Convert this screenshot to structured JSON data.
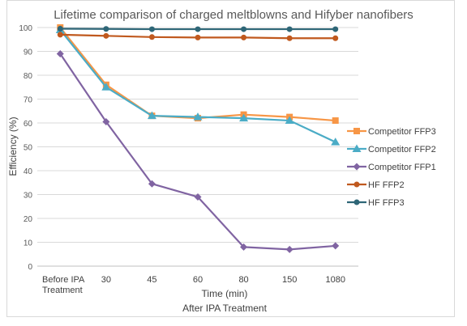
{
  "chart_data": {
    "type": "line",
    "title": "Lifetime comparison of charged meltblowns and Hifyber nanofibers",
    "ylabel": "Efficiency (%)",
    "xlabel": "Time (min)",
    "xlabel2": "After IPA Treatment",
    "categories": [
      "Before IPA Treatment",
      "30",
      "45",
      "60",
      "80",
      "150",
      "1080"
    ],
    "category_lines": [
      [
        "Before IPA",
        "Treatment"
      ],
      [
        "30"
      ],
      [
        "45"
      ],
      [
        "60"
      ],
      [
        "80"
      ],
      [
        "150"
      ],
      [
        "1080"
      ]
    ],
    "ylim": [
      0,
      100
    ],
    "yticks": [
      0,
      10,
      20,
      30,
      40,
      50,
      60,
      70,
      80,
      90,
      100
    ],
    "grid": true,
    "legend_position": "right",
    "series": [
      {
        "name": "Competitor FFP3",
        "color": "#F79646",
        "marker": "square",
        "values": [
          100,
          76,
          63,
          62,
          63.5,
          62.5,
          61
        ]
      },
      {
        "name": "Competitor FFP2",
        "color": "#4BACC6",
        "marker": "triangle",
        "values": [
          99,
          75,
          63,
          62.5,
          62,
          61,
          52
        ]
      },
      {
        "name": "Competitor FFP1",
        "color": "#8064A2",
        "marker": "diamond",
        "values": [
          89,
          60.5,
          34.5,
          29,
          8,
          7,
          8.5
        ]
      },
      {
        "name": "HF FFP2",
        "color": "#C0591E",
        "marker": "circle",
        "values": [
          97,
          96.5,
          96,
          95.8,
          95.8,
          95.5,
          95.5
        ]
      },
      {
        "name": "HF FFP3",
        "color": "#2E6677",
        "marker": "circle",
        "values": [
          99.5,
          99.4,
          99.3,
          99.3,
          99.3,
          99.3,
          99.3
        ]
      }
    ]
  }
}
